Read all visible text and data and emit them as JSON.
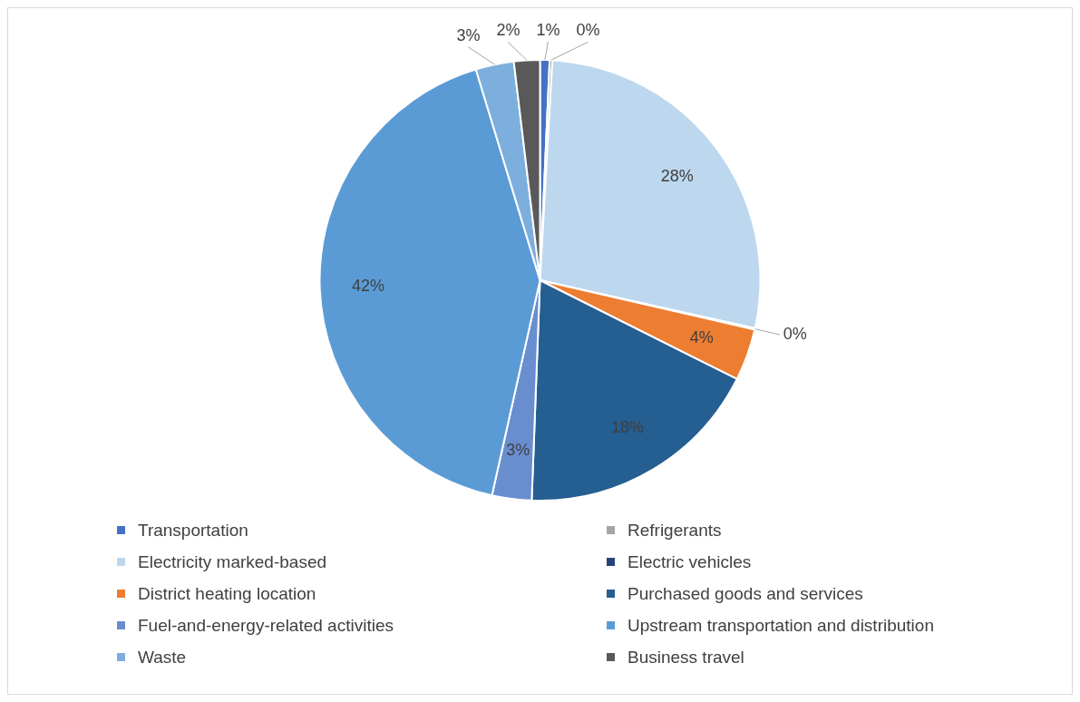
{
  "chart_data": {
    "type": "pie",
    "categories": [
      "Transportation",
      "Refrigerants",
      "Electricity marked-based",
      "Electric vehicles",
      "District heating location",
      "Purchased goods and services",
      "Fuel-and-energy-related activities",
      "Upstream transportation and distribution",
      "Waste",
      "Business travel"
    ],
    "values": [
      0.7,
      0.2,
      27.6,
      0.1,
      3.8,
      18.2,
      2.9,
      41.8,
      2.8,
      1.9
    ],
    "value_labels": [
      "1%",
      "0%",
      "28%",
      "0%",
      "4%",
      "18%",
      "3%",
      "42%",
      "3%",
      "2%"
    ],
    "colors": [
      "#4472c4",
      "#a5a5a5",
      "#bdd7ee",
      "#264478",
      "#ed7d31",
      "#255e91",
      "#698ed0",
      "#5b9bd5",
      "#7cafdd",
      "#595959"
    ],
    "legend": "bottom"
  }
}
